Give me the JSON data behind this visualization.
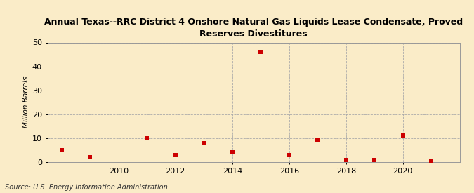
{
  "years": [
    2008,
    2009,
    2011,
    2012,
    2013,
    2014,
    2015,
    2016,
    2017,
    2018,
    2019,
    2020,
    2021
  ],
  "values": [
    5.0,
    2.0,
    10.0,
    3.0,
    8.0,
    4.0,
    46.0,
    3.0,
    9.0,
    1.0,
    1.0,
    11.0,
    0.5
  ],
  "title": "Annual Texas--RRC District 4 Onshore Natural Gas Liquids Lease Condensate, Proved\nReserves Divestitures",
  "ylabel": "Million Barrels",
  "source": "Source: U.S. Energy Information Administration",
  "marker_color": "#cc0000",
  "marker": "s",
  "marker_size": 4,
  "background_color": "#faecc8",
  "grid_color": "#aaaaaa",
  "xlim": [
    2007.5,
    2022.0
  ],
  "ylim": [
    0,
    50
  ],
  "yticks": [
    0,
    10,
    20,
    30,
    40,
    50
  ],
  "xticks": [
    2010,
    2012,
    2014,
    2016,
    2018,
    2020
  ]
}
